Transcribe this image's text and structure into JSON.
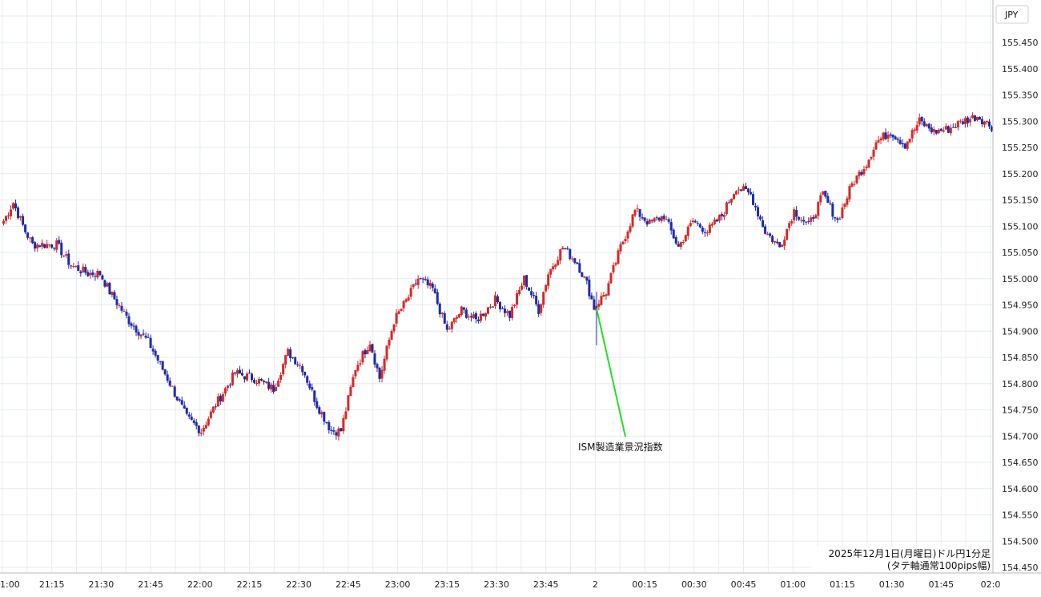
{
  "chart_data": {
    "type": "candlestick",
    "currency": "JPY",
    "y_ticks": [
      "155.450",
      "155.400",
      "155.350",
      "155.300",
      "155.250",
      "155.200",
      "155.150",
      "155.100",
      "155.050",
      "155.000",
      "154.950",
      "154.900",
      "154.850",
      "154.800",
      "154.750",
      "154.700",
      "154.650",
      "154.600",
      "154.550",
      "154.500",
      "154.450"
    ],
    "ylim": [
      154.44,
      155.475
    ],
    "x_ticks": [
      "1:00",
      "21:15",
      "21:30",
      "21:45",
      "22:00",
      "22:15",
      "22:30",
      "22:45",
      "23:00",
      "23:15",
      "23:30",
      "23:45",
      "2",
      "00:15",
      "00:30",
      "00:45",
      "01:00",
      "01:15",
      "01:30",
      "01:45",
      "02:0"
    ],
    "caption_line1": "2025年12月1日(月曜日)ドル円1分足",
    "caption_line2": "(タテ軸通常100pips幅)",
    "annotation": "ISM製造業景況指数",
    "colors": {
      "up": "#d62828",
      "down": "#1f2aa8",
      "annotation_line": "#22e022",
      "grid": "#e6ecf0"
    },
    "keypoints": [
      [
        0,
        155.11
      ],
      [
        4,
        155.145
      ],
      [
        9,
        155.09
      ],
      [
        12,
        155.065
      ],
      [
        22,
        155.065
      ],
      [
        28,
        155.025
      ],
      [
        35,
        155.01
      ],
      [
        40,
        155.01
      ],
      [
        44,
        154.975
      ],
      [
        52,
        154.92
      ],
      [
        60,
        154.88
      ],
      [
        68,
        154.81
      ],
      [
        76,
        154.735
      ],
      [
        82,
        154.71
      ],
      [
        88,
        154.76
      ],
      [
        96,
        154.82
      ],
      [
        104,
        154.81
      ],
      [
        112,
        154.79
      ],
      [
        118,
        154.86
      ],
      [
        124,
        154.83
      ],
      [
        130,
        154.76
      ],
      [
        136,
        154.71
      ],
      [
        140,
        154.71
      ],
      [
        146,
        154.83
      ],
      [
        152,
        154.88
      ],
      [
        156,
        154.81
      ],
      [
        162,
        154.92
      ],
      [
        168,
        154.965
      ],
      [
        172,
        155.0
      ],
      [
        178,
        154.98
      ],
      [
        184,
        154.9
      ],
      [
        190,
        154.94
      ],
      [
        196,
        154.92
      ],
      [
        204,
        154.96
      ],
      [
        210,
        154.93
      ],
      [
        216,
        155.0
      ],
      [
        222,
        154.94
      ],
      [
        226,
        155.01
      ],
      [
        232,
        155.06
      ],
      [
        238,
        155.03
      ],
      [
        242,
        154.99
      ],
      [
        245,
        154.945
      ],
      [
        250,
        154.975
      ],
      [
        256,
        155.06
      ],
      [
        262,
        155.13
      ],
      [
        268,
        155.105
      ],
      [
        274,
        155.12
      ],
      [
        280,
        155.06
      ],
      [
        286,
        155.11
      ],
      [
        292,
        155.09
      ],
      [
        298,
        155.12
      ],
      [
        304,
        155.175
      ],
      [
        310,
        155.16
      ],
      [
        316,
        155.09
      ],
      [
        322,
        155.06
      ],
      [
        328,
        155.13
      ],
      [
        334,
        155.1
      ],
      [
        340,
        155.16
      ],
      [
        346,
        155.11
      ],
      [
        352,
        155.18
      ],
      [
        358,
        155.22
      ],
      [
        362,
        155.26
      ],
      [
        368,
        155.28
      ],
      [
        374,
        155.255
      ],
      [
        380,
        155.3
      ],
      [
        386,
        155.28
      ],
      [
        392,
        155.285
      ],
      [
        398,
        155.3
      ],
      [
        404,
        155.31
      ],
      [
        410,
        155.29
      ]
    ]
  }
}
